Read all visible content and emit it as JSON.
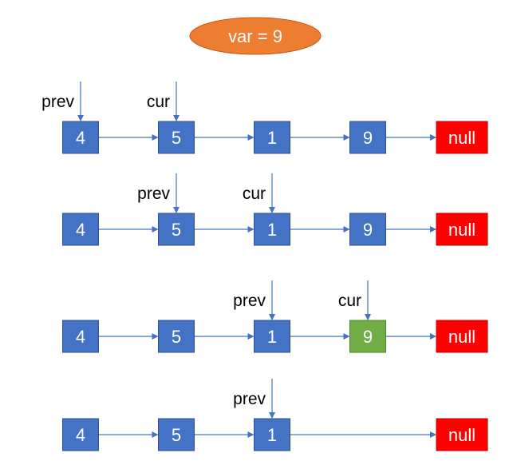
{
  "badge": {
    "text": "var = 9",
    "color": "#ED7D31"
  },
  "colors": {
    "node": "#4472C4",
    "node_border": "#2F528F",
    "highlight": "#70AD47",
    "null_fill": "#FF0000",
    "arrow": "#4472C4"
  },
  "rows": [
    {
      "nodes": [
        {
          "text": "4",
          "style": "normal"
        },
        {
          "text": "5",
          "style": "normal"
        },
        {
          "text": "1",
          "style": "normal"
        },
        {
          "text": "9",
          "style": "normal"
        },
        {
          "text": "null",
          "style": "null"
        }
      ],
      "pointers": [
        {
          "label": "prev",
          "node": 0
        },
        {
          "label": "cur",
          "node": 1
        }
      ]
    },
    {
      "nodes": [
        {
          "text": "4",
          "style": "normal"
        },
        {
          "text": "5",
          "style": "normal"
        },
        {
          "text": "1",
          "style": "normal"
        },
        {
          "text": "9",
          "style": "normal"
        },
        {
          "text": "null",
          "style": "null"
        }
      ],
      "pointers": [
        {
          "label": "prev",
          "node": 1
        },
        {
          "label": "cur",
          "node": 2
        }
      ]
    },
    {
      "nodes": [
        {
          "text": "4",
          "style": "normal"
        },
        {
          "text": "5",
          "style": "normal"
        },
        {
          "text": "1",
          "style": "normal"
        },
        {
          "text": "9",
          "style": "highlight"
        },
        {
          "text": "null",
          "style": "null"
        }
      ],
      "pointers": [
        {
          "label": "prev",
          "node": 2
        },
        {
          "label": "cur",
          "node": 3
        }
      ]
    },
    {
      "nodes": [
        {
          "text": "4",
          "style": "normal"
        },
        {
          "text": "5",
          "style": "normal"
        },
        {
          "text": "1",
          "style": "normal"
        },
        {
          "text": "null",
          "style": "null"
        }
      ],
      "pointers": [
        {
          "label": "prev",
          "node": 2
        }
      ]
    }
  ]
}
